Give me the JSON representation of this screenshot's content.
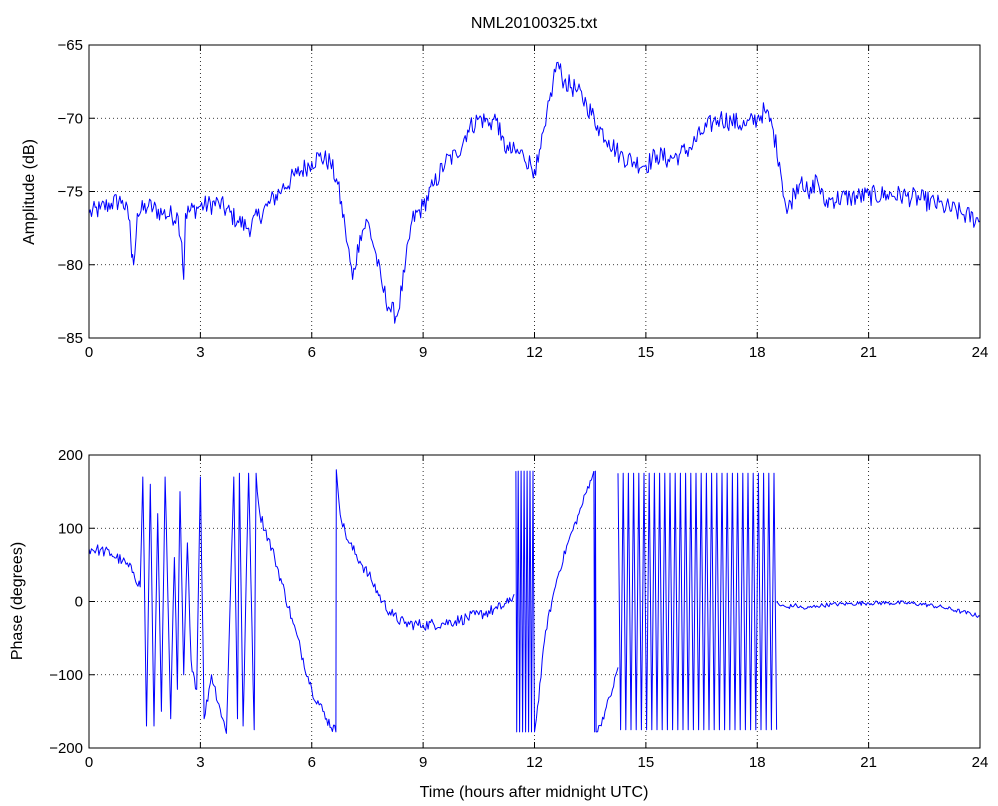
{
  "figure": {
    "title": "NML20100325.txt",
    "series_color": "#0000ff"
  },
  "chart_data": [
    {
      "type": "line",
      "title": "NML20100325.txt",
      "xlabel": "",
      "ylabel": "Amplitude (dB)",
      "xlim": [
        0,
        24
      ],
      "ylim": [
        -85,
        -65
      ],
      "xticks": [
        0,
        3,
        6,
        9,
        12,
        15,
        18,
        21,
        24
      ],
      "yticks": [
        -85,
        -80,
        -75,
        -70,
        -65
      ],
      "grid": true,
      "series": [
        {
          "noise": 0.7,
          "x": [
            0,
            0.3,
            0.6,
            0.9,
            1.1,
            1.15,
            1.2,
            1.3,
            1.6,
            2.0,
            2.4,
            2.5,
            2.55,
            2.6,
            3.0,
            3.5,
            4.0,
            4.3,
            4.8,
            5.2,
            5.6,
            6.0,
            6.2,
            6.5,
            6.7,
            6.9,
            7.1,
            7.3,
            7.5,
            7.7,
            7.9,
            8.1,
            8.3,
            8.5,
            8.7,
            9.0,
            9.3,
            9.6,
            9.9,
            10.2,
            10.5,
            10.8,
            11.0,
            11.1,
            11.3,
            11.7,
            12.0,
            12.1,
            12.3,
            12.5,
            12.6,
            12.8,
            13.1,
            13.4,
            13.7,
            14.0,
            14.3,
            14.7,
            15.0,
            15.3,
            15.6,
            15.9,
            16.2,
            16.5,
            16.8,
            17.0,
            17.3,
            17.7,
            18.0,
            18.2,
            18.4,
            18.6,
            18.8,
            19.0,
            19.2,
            19.4,
            19.6,
            19.8,
            20.0,
            20.5,
            21.0,
            21.5,
            22.0,
            22.5,
            23.0,
            23.5,
            24.0
          ],
          "y": [
            -76.5,
            -76.2,
            -75.8,
            -75.6,
            -77.0,
            -79.5,
            -80.0,
            -76.5,
            -76.0,
            -76.5,
            -76.7,
            -78.5,
            -81.0,
            -76.5,
            -76.0,
            -75.8,
            -77.0,
            -77.5,
            -76.0,
            -74.8,
            -73.8,
            -73.0,
            -72.6,
            -73.0,
            -74.5,
            -77.5,
            -81.0,
            -78.0,
            -77.0,
            -79.0,
            -81.5,
            -83.0,
            -83.5,
            -80.5,
            -77.0,
            -76.0,
            -74.5,
            -73.0,
            -72.5,
            -70.8,
            -70.0,
            -70.3,
            -70.0,
            -71.5,
            -72.2,
            -72.5,
            -73.5,
            -73.0,
            -70.5,
            -67.5,
            -66.2,
            -67.5,
            -68.0,
            -69.0,
            -70.5,
            -71.5,
            -72.5,
            -73.0,
            -73.2,
            -72.5,
            -72.8,
            -72.5,
            -72.0,
            -71.0,
            -70.3,
            -70.0,
            -70.2,
            -70.5,
            -70.0,
            -69.5,
            -70.5,
            -73.0,
            -76.5,
            -75.0,
            -74.0,
            -75.5,
            -74.0,
            -75.8,
            -75.5,
            -75.4,
            -75.3,
            -75.2,
            -75.3,
            -75.6,
            -76.0,
            -76.5,
            -77.0
          ]
        }
      ]
    },
    {
      "type": "line",
      "title": "",
      "xlabel": "Time (hours after midnight UTC)",
      "ylabel": "Phase (degrees)",
      "xlim": [
        0,
        24
      ],
      "ylim": [
        -200,
        200
      ],
      "xticks": [
        0,
        3,
        6,
        9,
        12,
        15,
        18,
        21,
        24
      ],
      "yticks": [
        -200,
        -100,
        0,
        100,
        200
      ],
      "grid": true,
      "series": [
        {
          "noise": 8,
          "x": [
            0,
            0.3,
            0.6,
            0.9,
            1.2,
            1.38,
            1.45,
            1.55,
            1.65,
            1.75,
            1.85,
            1.95,
            2.05,
            2.2,
            2.3,
            2.38,
            2.45,
            2.55,
            2.65,
            2.75,
            2.9,
            3.0,
            3.1,
            3.3,
            3.5,
            3.7,
            3.9,
            4.0,
            4.05,
            4.15,
            4.3,
            4.45,
            4.5,
            4.6,
            5.0,
            5.5,
            6.0,
            6.4,
            6.65,
            6.66,
            6.67,
            6.8,
            7.0,
            7.3,
            7.6,
            7.9,
            8.2,
            8.5,
            9.0,
            9.5,
            10.0,
            10.5,
            11.0,
            11.3,
            11.45
          ],
          "y": [
            72,
            70,
            65,
            55,
            40,
            20,
            170,
            -170,
            160,
            -170,
            120,
            -150,
            170,
            -160,
            60,
            -120,
            150,
            -100,
            80,
            -80,
            -120,
            170,
            -160,
            -100,
            -140,
            -180,
            170,
            -160,
            175,
            -170,
            175,
            -175,
            175,
            120,
            60,
            -30,
            -120,
            -160,
            -178,
            180,
            175,
            110,
            80,
            55,
            30,
            0,
            -20,
            -30,
            -32,
            -30,
            -25,
            -18,
            -10,
            -2,
            10
          ]
        },
        {
          "noise": 0,
          "x": [
            11.5,
            11.52,
            11.56,
            11.6,
            11.64,
            11.68,
            11.72,
            11.76,
            11.8,
            11.84,
            11.88,
            11.92,
            11.96,
            12.0,
            12.05
          ],
          "y": [
            178,
            -178,
            178,
            -178,
            178,
            -178,
            178,
            -178,
            178,
            -178,
            178,
            -178,
            178,
            -178,
            -160
          ]
        },
        {
          "noise": 6,
          "x": [
            12.05,
            12.3,
            12.6,
            12.9,
            13.2,
            13.5,
            13.6
          ],
          "y": [
            -160,
            -40,
            30,
            80,
            120,
            165,
            178
          ]
        },
        {
          "noise": 0,
          "x": [
            13.6,
            13.62,
            13.64,
            13.66,
            13.7
          ],
          "y": [
            178,
            -178,
            178,
            -178,
            -178
          ]
        },
        {
          "noise": 6,
          "x": [
            13.7,
            13.9,
            14.1,
            14.25
          ],
          "y": [
            -178,
            -150,
            -120,
            -90
          ]
        },
        {
          "noise": 0,
          "x": [
            14.25,
            14.32,
            14.39,
            14.46,
            14.53,
            14.6,
            14.67,
            14.74,
            14.81,
            14.88,
            14.95,
            15.02,
            15.09,
            15.16,
            15.23,
            15.3,
            15.37,
            15.44,
            15.51,
            15.58,
            15.65,
            15.72,
            15.79,
            15.86,
            15.93,
            16.0,
            16.07,
            16.14,
            16.21,
            16.28,
            16.35,
            16.42,
            16.49,
            16.56,
            16.63,
            16.7,
            16.77,
            16.84,
            16.91,
            16.98,
            17.05,
            17.12,
            17.19,
            17.26,
            17.33,
            17.4,
            17.47,
            17.54,
            17.61,
            17.68,
            17.75,
            17.82,
            17.89,
            17.96,
            18.03,
            18.1,
            18.17,
            18.24,
            18.31,
            18.38,
            18.45,
            18.52
          ],
          "y": [
            175,
            -175,
            175,
            -175,
            175,
            -175,
            175,
            -175,
            175,
            -175,
            175,
            -175,
            175,
            -175,
            175,
            -175,
            175,
            -175,
            175,
            -175,
            175,
            -175,
            175,
            -175,
            175,
            -175,
            175,
            -175,
            175,
            -175,
            175,
            -175,
            175,
            -175,
            175,
            -175,
            175,
            -175,
            175,
            -175,
            175,
            -175,
            175,
            -175,
            175,
            -175,
            175,
            -175,
            175,
            -175,
            175,
            -175,
            175,
            -175,
            175,
            -175,
            175,
            -175,
            175,
            -175,
            175,
            -175
          ]
        },
        {
          "noise": 3,
          "x": [
            18.52,
            18.6,
            18.8,
            19.0,
            19.3,
            19.6,
            20.0,
            20.5,
            21.0,
            21.5,
            22.0,
            22.5,
            23.0,
            23.5,
            24.0
          ],
          "y": [
            0,
            -5,
            -8,
            -5,
            -10,
            -6,
            -4,
            -3,
            -2,
            -2,
            -2,
            -4,
            -8,
            -14,
            -20
          ]
        }
      ]
    }
  ]
}
